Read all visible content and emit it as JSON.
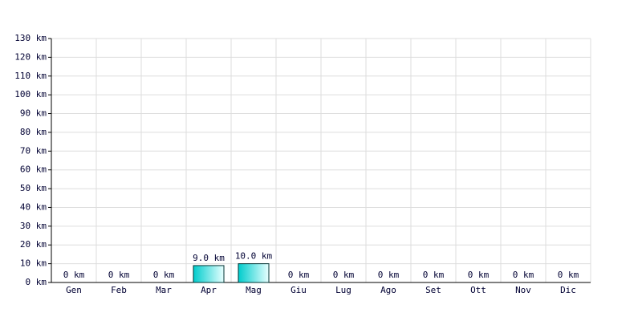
{
  "chart_data": {
    "type": "bar",
    "categories": [
      "Gen",
      "Feb",
      "Mar",
      "Apr",
      "Mag",
      "Giu",
      "Lug",
      "Ago",
      "Set",
      "Ott",
      "Nov",
      "Dic"
    ],
    "values": [
      0,
      0,
      0,
      9,
      10,
      0,
      0,
      0,
      0,
      0,
      0,
      0
    ],
    "value_labels": [
      "0 km",
      "0 km",
      "0 km",
      "9.0 km",
      "10.0 km",
      "0 km",
      "0 km",
      "0 km",
      "0 km",
      "0 km",
      "0 km",
      "0 km"
    ],
    "color": "#00cccc",
    "ylim": [
      0,
      130
    ],
    "yticks": [
      {
        "value": 0,
        "label": "0 km"
      },
      {
        "value": 10,
        "label": "10 km"
      },
      {
        "value": 20,
        "label": "20 km"
      },
      {
        "value": 30,
        "label": "30 km"
      },
      {
        "value": 40,
        "label": "40 km"
      },
      {
        "value": 50,
        "label": "50 km"
      },
      {
        "value": 60,
        "label": "60 km"
      },
      {
        "value": 70,
        "label": "70 km"
      },
      {
        "value": 80,
        "label": "80 km"
      },
      {
        "value": 90,
        "label": "90 km"
      },
      {
        "value": 100,
        "label": "100 km"
      },
      {
        "value": 110,
        "label": "110 km"
      },
      {
        "value": 120,
        "label": "120 km"
      },
      {
        "value": 130,
        "label": "130 km"
      }
    ],
    "grid": true
  }
}
